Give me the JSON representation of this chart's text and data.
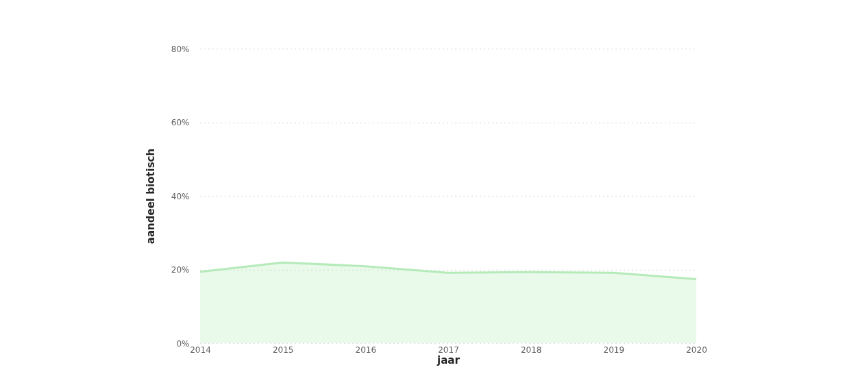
{
  "chart_data": {
    "type": "area",
    "xlabel": "jaar",
    "ylabel": "aandeel biotisch",
    "x": [
      2014,
      2015,
      2016,
      2017,
      2018,
      2019,
      2020
    ],
    "series": [
      {
        "color": "#b5eab9",
        "values": [
          19.4,
          21.9,
          20.9,
          19.1,
          19.3,
          19.1,
          17.4
        ]
      }
    ],
    "xlim": [
      2014,
      2020
    ],
    "xticks": [
      2014,
      2015,
      2016,
      2017,
      2018,
      2019,
      2020
    ],
    "ylim": [
      0,
      80
    ],
    "yticks": [
      {
        "value": 0,
        "label": "0%"
      },
      {
        "value": 20,
        "label": "20%"
      },
      {
        "value": 40,
        "label": "40%"
      },
      {
        "value": 60,
        "label": "60%"
      },
      {
        "value": 80,
        "label": "80%"
      }
    ],
    "grid": "y"
  }
}
